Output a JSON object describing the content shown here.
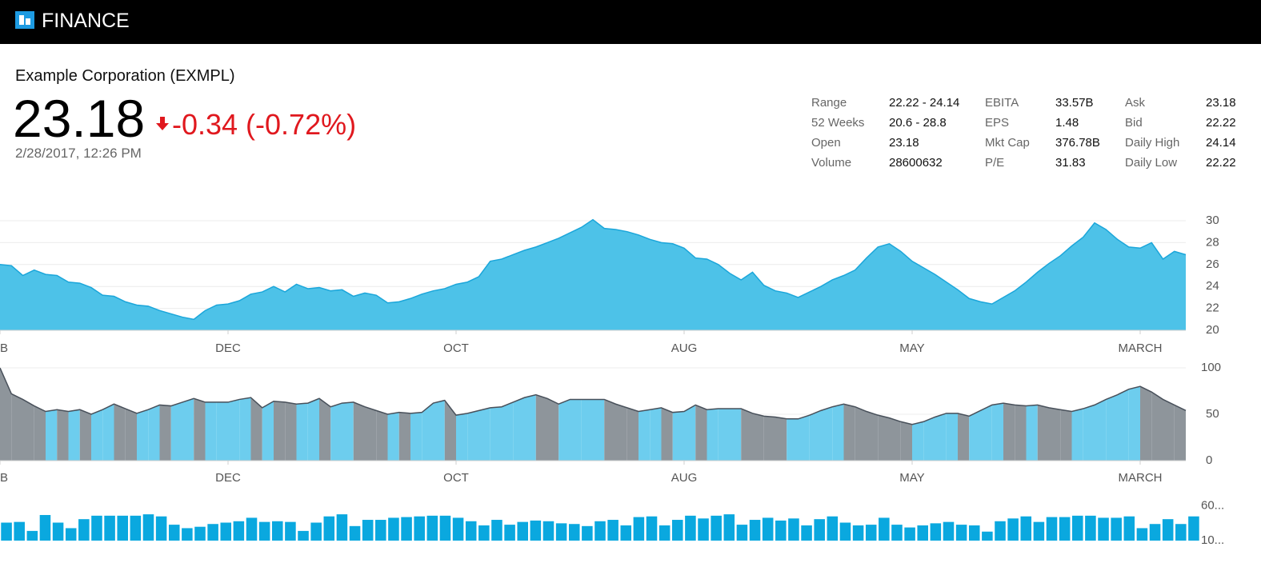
{
  "header": {
    "title": "FINANCE"
  },
  "quote": {
    "name": "Example Corporation (EXMPL)",
    "price": "23.18",
    "change": "-0.34 (-0.72%)",
    "timestamp": "2/28/2017, 12:26 PM"
  },
  "stats": [
    [
      "Range",
      "22.22 - 24.14",
      "EBITA",
      "33.57B",
      "Ask",
      "23.18"
    ],
    [
      "52 Weeks",
      "20.6 - 28.8",
      "EPS",
      "1.48",
      "Bid",
      "22.22"
    ],
    [
      "Open",
      "23.18",
      "Mkt Cap",
      "376.78B",
      "Daily High",
      "24.14"
    ],
    [
      "Volume",
      "28600632",
      "P/E",
      "31.83",
      "Daily Low",
      "22.22"
    ]
  ],
  "chart_data": [
    {
      "type": "area",
      "color": "#4dc2e8",
      "line_color": "#1ba6da",
      "categories": [
        "EB",
        null,
        null,
        null,
        null,
        null,
        null,
        null,
        null,
        null,
        null,
        null,
        null,
        null,
        null,
        null,
        null,
        null,
        null,
        null,
        "DEC",
        null,
        null,
        null,
        null,
        null,
        null,
        null,
        null,
        null,
        null,
        null,
        null,
        null,
        null,
        null,
        null,
        null,
        null,
        null,
        "OCT",
        null,
        null,
        null,
        null,
        null,
        null,
        null,
        null,
        null,
        null,
        null,
        null,
        null,
        null,
        null,
        null,
        null,
        null,
        null,
        "AUG",
        null,
        null,
        null,
        null,
        null,
        null,
        null,
        null,
        null,
        null,
        null,
        null,
        null,
        null,
        null,
        null,
        null,
        null,
        null,
        "MAY",
        null,
        null,
        null,
        null,
        null,
        null,
        null,
        null,
        null,
        null,
        null,
        null,
        null,
        null,
        null,
        null,
        null,
        null,
        null,
        "MARCH",
        null,
        null,
        null,
        null
      ],
      "values": [
        26,
        25.9,
        25,
        25.5,
        25.1,
        25,
        24.4,
        24.3,
        23.9,
        23.2,
        23.1,
        22.6,
        22.3,
        22.2,
        21.8,
        21.5,
        21.2,
        21,
        21.8,
        22.3,
        22.4,
        22.7,
        23.3,
        23.5,
        24,
        23.5,
        24.2,
        23.8,
        23.9,
        23.6,
        23.7,
        23.1,
        23.4,
        23.2,
        22.5,
        22.6,
        22.9,
        23.3,
        23.6,
        23.8,
        24.2,
        24.4,
        24.9,
        26.3,
        26.5,
        26.9,
        27.3,
        27.6,
        28,
        28.4,
        28.9,
        29.4,
        30.1,
        29.3,
        29.2,
        29,
        28.7,
        28.3,
        28,
        27.9,
        27.5,
        26.6,
        26.5,
        26,
        25.2,
        24.6,
        25.3,
        24.1,
        23.6,
        23.4,
        23,
        23.5,
        24,
        24.6,
        25,
        25.5,
        26.6,
        27.6,
        27.9,
        27.2,
        26.3,
        25.7,
        25.1,
        24.4,
        23.7,
        22.9,
        22.6,
        22.4,
        23,
        23.6,
        24.4,
        25.3,
        26.1,
        26.8,
        27.7,
        28.5,
        29.8,
        29.2,
        28.3,
        27.6,
        27.5,
        28,
        26.5,
        27.2,
        26.9
      ],
      "ylim": [
        20,
        30
      ],
      "yticks": [
        20,
        22,
        24,
        26,
        28,
        30
      ],
      "grid": true
    },
    {
      "type": "area",
      "rise_color": "#6dcdee",
      "fall_color": "#8e959b",
      "line_color": "#48505a",
      "categories": [
        "EB",
        null,
        null,
        null,
        null,
        null,
        null,
        null,
        null,
        null,
        null,
        null,
        null,
        null,
        null,
        null,
        null,
        null,
        null,
        null,
        "DEC",
        null,
        null,
        null,
        null,
        null,
        null,
        null,
        null,
        null,
        null,
        null,
        null,
        null,
        null,
        null,
        null,
        null,
        null,
        null,
        "OCT",
        null,
        null,
        null,
        null,
        null,
        null,
        null,
        null,
        null,
        null,
        null,
        null,
        null,
        null,
        null,
        null,
        null,
        null,
        null,
        "AUG",
        null,
        null,
        null,
        null,
        null,
        null,
        null,
        null,
        null,
        null,
        null,
        null,
        null,
        null,
        null,
        null,
        null,
        null,
        null,
        "MAY",
        null,
        null,
        null,
        null,
        null,
        null,
        null,
        null,
        null,
        null,
        null,
        null,
        null,
        null,
        null,
        null,
        null,
        null,
        null,
        "MARCH",
        null,
        null,
        null,
        null
      ],
      "values": [
        100,
        72,
        66,
        59,
        53,
        55,
        53,
        55,
        50,
        55,
        61,
        56,
        51,
        55,
        60,
        59,
        63,
        67,
        63,
        63,
        63,
        66,
        68,
        57,
        64,
        63,
        61,
        62,
        67,
        58,
        62,
        63,
        58,
        54,
        50,
        52,
        51,
        52,
        62,
        65,
        49,
        51,
        54,
        57,
        58,
        63,
        68,
        71,
        67,
        61,
        66,
        66,
        66,
        66,
        61,
        57,
        53,
        55,
        57,
        52,
        53,
        60,
        55,
        56,
        56,
        56,
        51,
        48,
        47,
        45,
        45,
        49,
        54,
        58,
        61,
        58,
        53,
        49,
        46,
        42,
        39,
        42,
        47,
        51,
        51,
        48,
        54,
        60,
        62,
        60,
        59,
        60,
        57,
        55,
        53,
        56,
        60,
        66,
        71,
        77,
        80,
        74,
        66,
        60,
        54
      ],
      "ylim": [
        0,
        100
      ],
      "yticks": [
        0,
        50,
        100
      ],
      "grid": true
    },
    {
      "type": "bar",
      "color": "#0aa8df",
      "values": [
        36,
        37,
        24,
        47,
        36,
        28,
        41,
        46,
        46,
        46,
        46,
        48,
        45,
        33,
        28,
        30,
        34,
        36,
        38,
        43,
        37,
        38,
        37,
        24,
        36,
        45,
        48,
        31,
        40,
        40,
        43,
        44,
        45,
        46,
        46,
        43,
        38,
        32,
        40,
        33,
        37,
        39,
        38,
        35,
        34,
        31,
        38,
        40,
        32,
        44,
        45,
        32,
        40,
        46,
        42,
        46,
        48,
        33,
        40,
        43,
        39,
        42,
        32,
        41,
        45,
        36,
        32,
        33,
        43,
        33,
        29,
        32,
        35,
        37,
        33,
        32,
        23,
        38,
        42,
        45,
        37,
        44,
        44,
        46,
        46,
        43,
        43,
        45,
        28,
        34,
        41,
        34,
        45
      ],
      "ylim": [
        10,
        62
      ],
      "yticks": [
        {
          "value": 60,
          "label": "60..."
        },
        {
          "value": 10,
          "label": "10..."
        }
      ],
      "grid": false
    }
  ]
}
